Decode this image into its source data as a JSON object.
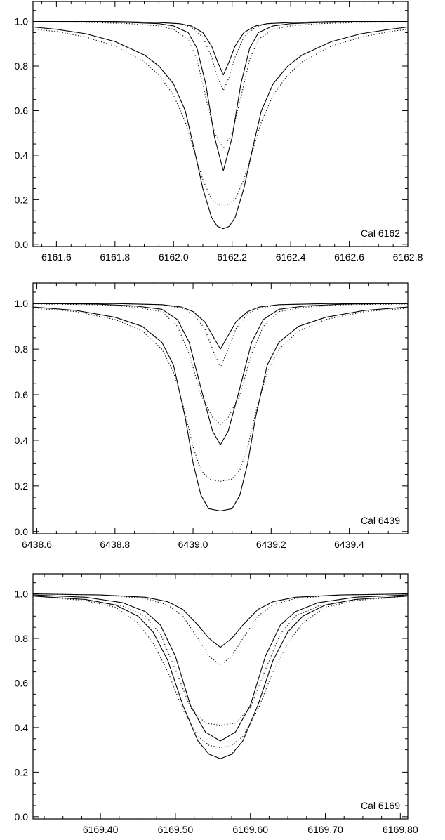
{
  "chart_data": [
    {
      "type": "line",
      "title": "",
      "xlabel": "",
      "ylabel": "",
      "annotation": "Cal 6162",
      "xlim": [
        6161.52,
        6162.8
      ],
      "ylim": [
        -0.01,
        1.09
      ],
      "x_ticks": [
        6161.6,
        6161.8,
        6162.0,
        6162.2,
        6162.4,
        6162.6,
        6162.8
      ],
      "x_tick_labels": [
        "6161.6",
        "6161.8",
        "6162.0",
        "6162.2",
        "6162.4",
        "6162.6",
        "6162.8"
      ],
      "y_ticks": [
        0.0,
        0.2,
        0.4,
        0.6,
        0.8,
        1.0
      ],
      "y_tick_labels": [
        "0.0",
        "0.2",
        "0.4",
        "0.6",
        "0.8",
        "1.0"
      ],
      "series": [
        {
          "style": "solid",
          "x": [
            6161.52,
            6161.8,
            6161.95,
            6162.02,
            6162.06,
            6162.1,
            6162.13,
            6162.15,
            6162.17,
            6162.19,
            6162.21,
            6162.24,
            6162.28,
            6162.32,
            6162.4,
            6162.55,
            6162.8
          ],
          "y": [
            1.0,
            1.0,
            0.995,
            0.99,
            0.98,
            0.95,
            0.89,
            0.82,
            0.76,
            0.82,
            0.89,
            0.95,
            0.98,
            0.99,
            0.995,
            1.0,
            1.0
          ]
        },
        {
          "style": "dotted",
          "x": [
            6161.52,
            6161.8,
            6161.95,
            6162.02,
            6162.06,
            6162.1,
            6162.13,
            6162.15,
            6162.17,
            6162.19,
            6162.21,
            6162.24,
            6162.28,
            6162.32,
            6162.4,
            6162.55,
            6162.8
          ],
          "y": [
            1.0,
            1.0,
            0.995,
            0.99,
            0.975,
            0.93,
            0.84,
            0.75,
            0.69,
            0.75,
            0.84,
            0.93,
            0.975,
            0.99,
            0.995,
            1.0,
            1.0
          ]
        },
        {
          "style": "solid",
          "x": [
            6161.52,
            6161.7,
            6161.85,
            6161.95,
            6162.0,
            6162.05,
            6162.08,
            6162.11,
            6162.14,
            6162.17,
            6162.2,
            6162.23,
            6162.26,
            6162.29,
            6162.34,
            6162.4,
            6162.5,
            6162.65,
            6162.8
          ],
          "y": [
            1.0,
            0.998,
            0.995,
            0.99,
            0.98,
            0.95,
            0.88,
            0.72,
            0.48,
            0.33,
            0.48,
            0.72,
            0.88,
            0.95,
            0.98,
            0.99,
            0.995,
            0.998,
            1.0
          ]
        },
        {
          "style": "dotted",
          "x": [
            6161.52,
            6161.7,
            6161.85,
            6161.95,
            6162.0,
            6162.05,
            6162.08,
            6162.11,
            6162.14,
            6162.17,
            6162.2,
            6162.23,
            6162.26,
            6162.29,
            6162.34,
            6162.4,
            6162.5,
            6162.65,
            6162.8
          ],
          "y": [
            0.998,
            0.996,
            0.99,
            0.98,
            0.965,
            0.92,
            0.83,
            0.66,
            0.5,
            0.43,
            0.5,
            0.66,
            0.83,
            0.92,
            0.965,
            0.98,
            0.99,
            0.996,
            0.998
          ]
        },
        {
          "style": "solid",
          "x": [
            6161.52,
            6161.6,
            6161.7,
            6161.8,
            6161.9,
            6161.95,
            6162.0,
            6162.04,
            6162.07,
            6162.1,
            6162.13,
            6162.15,
            6162.17,
            6162.19,
            6162.21,
            6162.24,
            6162.27,
            6162.3,
            6162.34,
            6162.39,
            6162.44,
            6162.54,
            6162.64,
            6162.74,
            6162.8
          ],
          "y": [
            0.975,
            0.965,
            0.945,
            0.91,
            0.85,
            0.8,
            0.72,
            0.6,
            0.43,
            0.25,
            0.12,
            0.08,
            0.07,
            0.08,
            0.12,
            0.25,
            0.43,
            0.6,
            0.72,
            0.8,
            0.85,
            0.91,
            0.945,
            0.965,
            0.975
          ]
        },
        {
          "style": "dotted",
          "x": [
            6161.52,
            6161.6,
            6161.7,
            6161.8,
            6161.9,
            6161.95,
            6162.0,
            6162.04,
            6162.07,
            6162.1,
            6162.13,
            6162.15,
            6162.17,
            6162.19,
            6162.21,
            6162.24,
            6162.27,
            6162.3,
            6162.34,
            6162.39,
            6162.44,
            6162.54,
            6162.64,
            6162.74,
            6162.8
          ],
          "y": [
            0.965,
            0.955,
            0.93,
            0.89,
            0.82,
            0.76,
            0.67,
            0.55,
            0.42,
            0.29,
            0.2,
            0.18,
            0.17,
            0.18,
            0.2,
            0.29,
            0.42,
            0.55,
            0.67,
            0.76,
            0.82,
            0.89,
            0.93,
            0.955,
            0.965
          ]
        }
      ]
    },
    {
      "type": "line",
      "title": "",
      "xlabel": "",
      "ylabel": "",
      "annotation": "Cal 6439",
      "xlim": [
        6438.59,
        6439.55
      ],
      "ylim": [
        -0.01,
        1.09
      ],
      "x_ticks": [
        6438.6,
        6438.8,
        6439.0,
        6439.2,
        6439.4
      ],
      "x_tick_labels": [
        "6438.6",
        "6438.8",
        "6439.0",
        "6439.2",
        "6439.4"
      ],
      "y_ticks": [
        0.0,
        0.2,
        0.4,
        0.6,
        0.8,
        1.0
      ],
      "y_tick_labels": [
        "0.0",
        "0.2",
        "0.4",
        "0.6",
        "0.8",
        "1.0"
      ],
      "series": [
        {
          "style": "solid",
          "x": [
            6438.59,
            6438.8,
            6438.92,
            6438.97,
            6439.0,
            6439.03,
            6439.05,
            6439.07,
            6439.09,
            6439.11,
            6439.14,
            6439.17,
            6439.22,
            6439.35,
            6439.55
          ],
          "y": [
            1.0,
            1.0,
            0.995,
            0.985,
            0.965,
            0.92,
            0.86,
            0.8,
            0.86,
            0.92,
            0.965,
            0.985,
            0.995,
            1.0,
            1.0
          ]
        },
        {
          "style": "dotted",
          "x": [
            6438.59,
            6438.8,
            6438.92,
            6438.97,
            6439.0,
            6439.03,
            6439.05,
            6439.07,
            6439.09,
            6439.11,
            6439.14,
            6439.17,
            6439.22,
            6439.35,
            6439.55
          ],
          "y": [
            1.0,
            1.0,
            0.995,
            0.98,
            0.955,
            0.89,
            0.8,
            0.72,
            0.8,
            0.89,
            0.955,
            0.98,
            0.995,
            1.0,
            1.0
          ]
        },
        {
          "style": "solid",
          "x": [
            6438.59,
            6438.75,
            6438.85,
            6438.92,
            6438.96,
            6438.99,
            6439.02,
            6439.05,
            6439.07,
            6439.09,
            6439.12,
            6439.15,
            6439.18,
            6439.22,
            6439.29,
            6439.39,
            6439.55
          ],
          "y": [
            1.0,
            0.998,
            0.99,
            0.975,
            0.93,
            0.83,
            0.63,
            0.44,
            0.38,
            0.44,
            0.63,
            0.83,
            0.93,
            0.975,
            0.99,
            0.998,
            1.0
          ]
        },
        {
          "style": "dotted",
          "x": [
            6438.59,
            6438.75,
            6438.85,
            6438.92,
            6438.96,
            6438.99,
            6439.02,
            6439.05,
            6439.07,
            6439.09,
            6439.12,
            6439.15,
            6439.18,
            6439.22,
            6439.29,
            6439.39,
            6439.55
          ],
          "y": [
            0.998,
            0.995,
            0.985,
            0.965,
            0.9,
            0.78,
            0.6,
            0.5,
            0.47,
            0.5,
            0.6,
            0.78,
            0.9,
            0.965,
            0.985,
            0.995,
            0.998
          ]
        },
        {
          "style": "solid",
          "x": [
            6438.59,
            6438.7,
            6438.8,
            6438.87,
            6438.92,
            6438.95,
            6438.98,
            6439.0,
            6439.02,
            6439.04,
            6439.07,
            6439.1,
            6439.12,
            6439.14,
            6439.16,
            6439.19,
            6439.22,
            6439.27,
            6439.34,
            6439.44,
            6439.55
          ],
          "y": [
            0.985,
            0.97,
            0.94,
            0.9,
            0.83,
            0.73,
            0.5,
            0.3,
            0.16,
            0.1,
            0.09,
            0.1,
            0.16,
            0.3,
            0.5,
            0.73,
            0.83,
            0.9,
            0.94,
            0.97,
            0.985
          ]
        },
        {
          "style": "dotted",
          "x": [
            6438.59,
            6438.7,
            6438.8,
            6438.87,
            6438.92,
            6438.95,
            6438.98,
            6439.0,
            6439.02,
            6439.04,
            6439.07,
            6439.1,
            6439.12,
            6439.14,
            6439.16,
            6439.19,
            6439.22,
            6439.27,
            6439.34,
            6439.44,
            6439.55
          ],
          "y": [
            0.98,
            0.965,
            0.93,
            0.88,
            0.8,
            0.7,
            0.52,
            0.37,
            0.27,
            0.23,
            0.22,
            0.23,
            0.27,
            0.37,
            0.52,
            0.7,
            0.8,
            0.88,
            0.93,
            0.965,
            0.98
          ]
        }
      ]
    },
    {
      "type": "line",
      "title": "",
      "xlabel": "",
      "ylabel": "",
      "annotation": "Cal 6169",
      "xlim": [
        6169.31,
        6169.81
      ],
      "ylim": [
        -0.01,
        1.09
      ],
      "x_ticks": [
        6169.4,
        6169.5,
        6169.6,
        6169.7,
        6169.8
      ],
      "x_tick_labels": [
        "6169.40",
        "6169.50",
        "6169.60",
        "6169.70",
        "6169.80"
      ],
      "y_ticks": [
        0.0,
        0.2,
        0.4,
        0.6,
        0.8,
        1.0
      ],
      "y_tick_labels": [
        "0.0",
        "0.2",
        "0.4",
        "0.6",
        "0.8",
        "1.0"
      ],
      "series": [
        {
          "style": "solid",
          "x": [
            6169.31,
            6169.4,
            6169.46,
            6169.49,
            6169.51,
            6169.53,
            6169.545,
            6169.56,
            6169.575,
            6169.59,
            6169.61,
            6169.63,
            6169.66,
            6169.72,
            6169.81
          ],
          "y": [
            1.0,
            0.995,
            0.985,
            0.965,
            0.93,
            0.86,
            0.8,
            0.76,
            0.8,
            0.86,
            0.93,
            0.965,
            0.985,
            0.995,
            1.0
          ]
        },
        {
          "style": "dotted",
          "x": [
            6169.31,
            6169.4,
            6169.46,
            6169.49,
            6169.51,
            6169.53,
            6169.545,
            6169.56,
            6169.575,
            6169.59,
            6169.61,
            6169.63,
            6169.66,
            6169.72,
            6169.81
          ],
          "y": [
            1.0,
            0.995,
            0.98,
            0.95,
            0.9,
            0.8,
            0.72,
            0.68,
            0.72,
            0.8,
            0.9,
            0.95,
            0.98,
            0.995,
            1.0
          ]
        },
        {
          "style": "solid",
          "x": [
            6169.31,
            6169.38,
            6169.43,
            6169.46,
            6169.48,
            6169.5,
            6169.52,
            6169.54,
            6169.56,
            6169.58,
            6169.6,
            6169.62,
            6169.64,
            6169.66,
            6169.69,
            6169.74,
            6169.81
          ],
          "y": [
            0.995,
            0.985,
            0.96,
            0.92,
            0.86,
            0.72,
            0.5,
            0.38,
            0.34,
            0.38,
            0.5,
            0.72,
            0.86,
            0.92,
            0.96,
            0.985,
            0.995
          ]
        },
        {
          "style": "dotted",
          "x": [
            6169.31,
            6169.38,
            6169.43,
            6169.46,
            6169.48,
            6169.5,
            6169.52,
            6169.54,
            6169.56,
            6169.58,
            6169.6,
            6169.62,
            6169.64,
            6169.66,
            6169.69,
            6169.74,
            6169.81
          ],
          "y": [
            0.99,
            0.975,
            0.945,
            0.9,
            0.82,
            0.66,
            0.49,
            0.42,
            0.41,
            0.42,
            0.49,
            0.66,
            0.82,
            0.9,
            0.945,
            0.975,
            0.99
          ]
        },
        {
          "style": "solid",
          "x": [
            6169.31,
            6169.38,
            6169.42,
            6169.45,
            6169.47,
            6169.49,
            6169.51,
            6169.53,
            6169.545,
            6169.56,
            6169.575,
            6169.59,
            6169.61,
            6169.63,
            6169.65,
            6169.67,
            6169.7,
            6169.74,
            6169.81
          ],
          "y": [
            0.99,
            0.975,
            0.95,
            0.9,
            0.83,
            0.7,
            0.5,
            0.34,
            0.28,
            0.26,
            0.28,
            0.34,
            0.5,
            0.7,
            0.83,
            0.9,
            0.95,
            0.975,
            0.99
          ]
        },
        {
          "style": "dotted",
          "x": [
            6169.31,
            6169.38,
            6169.42,
            6169.45,
            6169.47,
            6169.49,
            6169.51,
            6169.53,
            6169.545,
            6169.56,
            6169.575,
            6169.59,
            6169.61,
            6169.63,
            6169.65,
            6169.67,
            6169.7,
            6169.74,
            6169.81
          ],
          "y": [
            0.99,
            0.97,
            0.94,
            0.87,
            0.78,
            0.65,
            0.48,
            0.36,
            0.32,
            0.31,
            0.32,
            0.36,
            0.48,
            0.65,
            0.78,
            0.87,
            0.94,
            0.97,
            0.99
          ]
        }
      ]
    }
  ]
}
